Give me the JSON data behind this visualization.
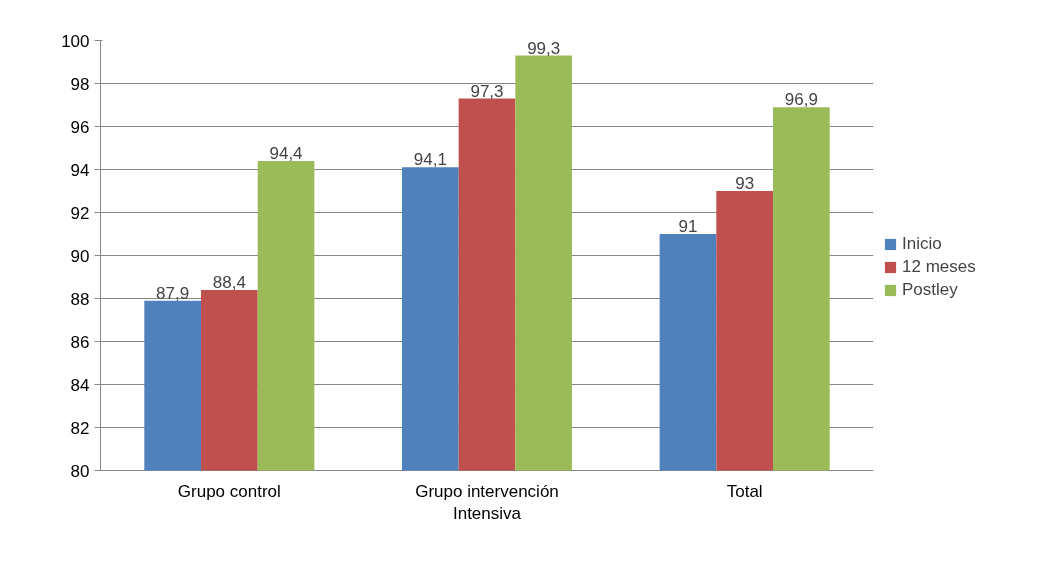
{
  "chart_data": {
    "type": "bar",
    "categories": [
      "Grupo control",
      "Grupo intervención\nIntensiva",
      "Total"
    ],
    "series": [
      {
        "name": "Inicio",
        "color": "#4f81bd",
        "values": [
          87.9,
          94.1,
          91
        ],
        "value_labels": [
          "87,9",
          "94,1",
          "91"
        ]
      },
      {
        "name": "12 meses",
        "color": "#c0504d",
        "values": [
          88.4,
          97.3,
          93
        ],
        "value_labels": [
          "88,4",
          "97,3",
          "93"
        ]
      },
      {
        "name": "Postley",
        "color": "#9bbb59",
        "values": [
          94.4,
          99.3,
          96.9
        ],
        "value_labels": [
          "94,4",
          "99,3",
          "96,9"
        ]
      }
    ],
    "ylim": [
      80,
      100
    ],
    "yticks": [
      80,
      82,
      84,
      86,
      88,
      90,
      92,
      94,
      96,
      98,
      100
    ],
    "grid": "y",
    "legend": "right"
  }
}
